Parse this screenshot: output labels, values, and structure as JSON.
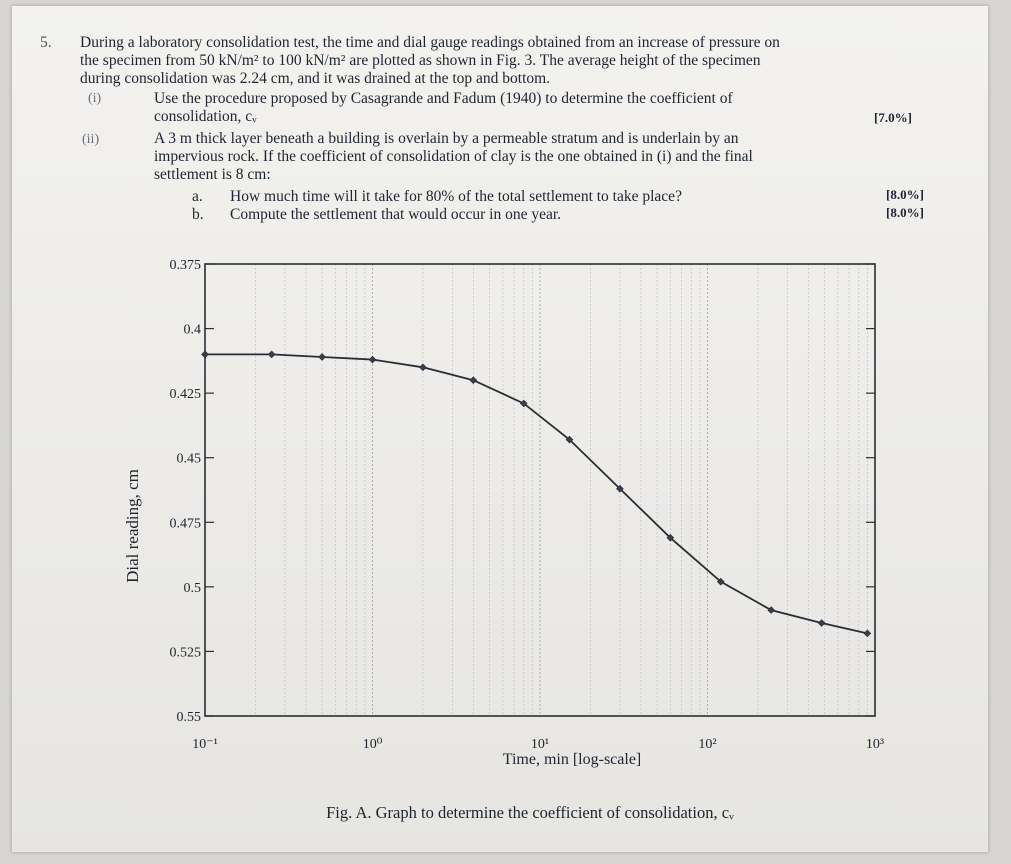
{
  "question": {
    "number": "5.",
    "intro_lines": [
      "During a laboratory consolidation test, the time and dial gauge readings obtained from an increase of pressure on",
      "the specimen from 50 kN/m² to 100 kN/m² are plotted as shown in Fig. 3. The average height of the specimen",
      "during consolidation was 2.24 cm, and it was drained at the top and bottom."
    ],
    "parts": [
      {
        "label": "(i)",
        "lines": [
          "Use the procedure proposed by Casagrande and Fadum (1940) to determine the coefficient of",
          "consolidation, cᵥ"
        ],
        "marks": "[7.0%]"
      },
      {
        "label": "(ii)",
        "lines": [
          "A 3 m thick layer beneath a building is overlain by a permeable stratum and is underlain by an",
          "impervious rock. If the coefficient of consolidation of clay is the one obtained in (i) and the final",
          "settlement is 8 cm:"
        ],
        "subparts": [
          {
            "label": "a.",
            "text": "How much time will it take for 80% of the total settlement to take place?",
            "marks": "[8.0%]"
          },
          {
            "label": "b.",
            "text": "Compute the settlement that would occur in one year.",
            "marks": "[8.0%]"
          }
        ]
      }
    ]
  },
  "chart_data": {
    "type": "line",
    "x_scale": "log",
    "xlim": [
      0.1,
      1000
    ],
    "ylim": [
      0.375,
      0.55
    ],
    "y_inverted": true,
    "xlabel": "Time, min [log-scale]",
    "ylabel": "Dial reading, cm",
    "x_ticks": [
      "10⁻¹",
      "10⁰",
      "10¹",
      "10²",
      "10³"
    ],
    "x_tick_values": [
      0.1,
      1,
      10,
      100,
      1000
    ],
    "y_ticks": [
      "0.375",
      "0.4",
      "0.425",
      "0.45",
      "0.475",
      "0.5",
      "0.525",
      "0.55"
    ],
    "y_tick_values": [
      0.375,
      0.4,
      0.425,
      0.45,
      0.475,
      0.5,
      0.525,
      0.55
    ],
    "grid": true,
    "series": [
      {
        "x": [
          0.1,
          0.25,
          0.5,
          1,
          2,
          4,
          8,
          15,
          30,
          60,
          120,
          240,
          480,
          900
        ],
        "y": [
          0.41,
          0.41,
          0.411,
          0.412,
          0.415,
          0.42,
          0.429,
          0.443,
          0.462,
          0.481,
          0.498,
          0.509,
          0.514,
          0.518
        ]
      }
    ],
    "caption": "Fig. A. Graph to determine the coefficient of consolidation, cᵥ"
  }
}
